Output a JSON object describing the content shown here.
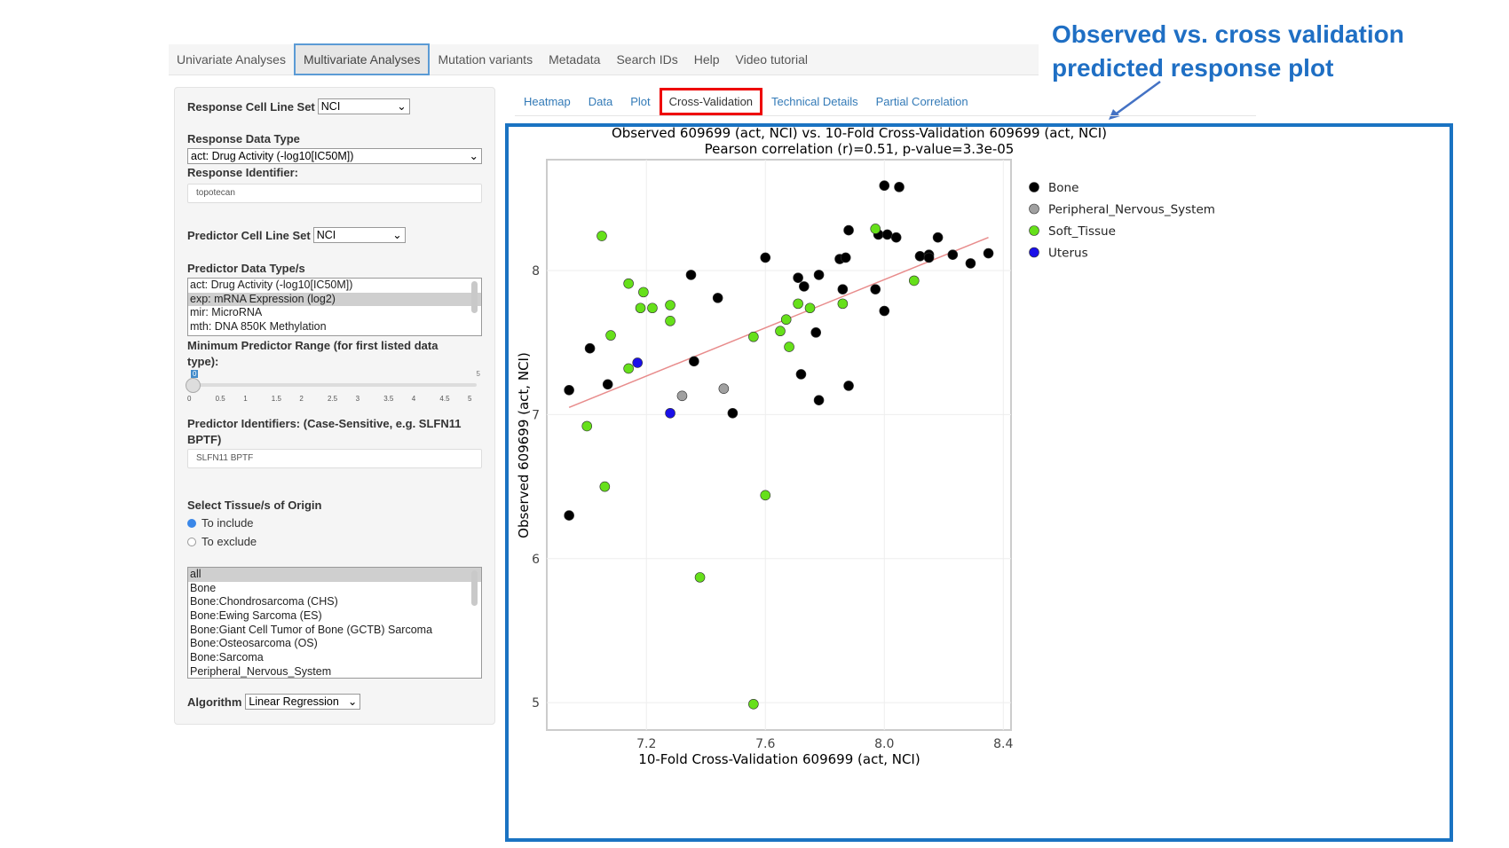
{
  "annotation": {
    "line1": "Observed vs. cross validation",
    "line2": "predicted response plot",
    "color": "#1f6fc4"
  },
  "topnav": [
    "Univariate Analyses",
    "Multivariate Analyses",
    "Mutation variants",
    "Metadata",
    "Search IDs",
    "Help",
    "Video tutorial"
  ],
  "topnav_active": "Multivariate Analyses",
  "left": {
    "response_cell_line_set": {
      "label": "Response Cell Line Set",
      "value": "NCI"
    },
    "response_data_type": {
      "label": "Response Data Type",
      "value": "act: Drug Activity (-log10[IC50M])"
    },
    "response_identifier": {
      "label": "Response Identifier:",
      "value": "topotecan"
    },
    "predictor_cell_line_set": {
      "label": "Predictor Cell Line Set",
      "value": "NCI"
    },
    "predictor_data_types": {
      "label": "Predictor Data Type/s",
      "options": [
        "act: Drug Activity (-log10[IC50M])",
        "exp: mRNA Expression (log2)",
        "mir: MicroRNA",
        "mth: DNA 850K Methylation"
      ],
      "selected": "exp: mRNA Expression (log2)"
    },
    "min_range": {
      "label": "Minimum Predictor Range (for first listed data type):",
      "value": 0,
      "min": 0,
      "max": 5,
      "ticks": [
        "0",
        "0.5",
        "1",
        "1.5",
        "2",
        "2.5",
        "3",
        "3.5",
        "4",
        "4.5",
        "5"
      ],
      "value_label": "0",
      "max_label": "5"
    },
    "predictor_identifiers": {
      "label": "Predictor Identifiers: (Case-Sensitive, e.g. SLFN11 BPTF)",
      "value": "SLFN11 BPTF"
    },
    "tissue": {
      "label": "Select Tissue/s of Origin",
      "include": "To include",
      "exclude": "To exclude",
      "selected_mode": "include",
      "options": [
        "all",
        "Bone",
        "Bone:Chondrosarcoma (CHS)",
        "Bone:Ewing Sarcoma (ES)",
        "Bone:Giant Cell Tumor of Bone (GCTB) Sarcoma",
        "Bone:Osteosarcoma (OS)",
        "Bone:Sarcoma",
        "Peripheral_Nervous_System"
      ],
      "selected": "all"
    },
    "algorithm": {
      "label": "Algorithm",
      "value": "Linear Regression"
    }
  },
  "subtabs": [
    "Heatmap",
    "Data",
    "Plot",
    "Cross-Validation",
    "Technical Details",
    "Partial Correlation"
  ],
  "subtab_active": "Cross-Validation",
  "chart_data": {
    "type": "scatter",
    "title": "Observed 609699 (act, NCI) vs. 10-Fold Cross-Validation 609699 (act, NCI)",
    "subtitle": "Pearson correlation (r)=0.51, p-value=3.3e-05",
    "xlabel": "10-Fold Cross-Validation 609699 (act, NCI)",
    "ylabel": "Observed 609699 (act, NCI)",
    "xlim": [
      6.865,
      8.426
    ],
    "ylim": [
      4.81,
      8.77
    ],
    "xticks": [
      7.2,
      7.6,
      8.0,
      8.4
    ],
    "xtick_labels": [
      "7.2",
      "7.6",
      "8.0",
      "8.4"
    ],
    "yticks": [
      5,
      6,
      7,
      8
    ],
    "ytick_labels": [
      "5",
      "6",
      "7",
      "8"
    ],
    "grid": true,
    "legend_position": "right",
    "fit_line": {
      "x": [
        6.94,
        8.35
      ],
      "y": [
        7.05,
        8.23
      ],
      "color": "#e88c8c"
    },
    "series": [
      {
        "name": "Bone",
        "color": "#000000",
        "points": [
          [
            8.0,
            8.59
          ],
          [
            8.05,
            8.58
          ],
          [
            7.88,
            8.28
          ],
          [
            7.98,
            8.25
          ],
          [
            8.01,
            8.25
          ],
          [
            8.04,
            8.23
          ],
          [
            8.18,
            8.23
          ],
          [
            7.6,
            8.09
          ],
          [
            7.85,
            8.08
          ],
          [
            7.87,
            8.09
          ],
          [
            8.12,
            8.1
          ],
          [
            8.15,
            8.11
          ],
          [
            8.15,
            8.09
          ],
          [
            8.23,
            8.11
          ],
          [
            8.29,
            8.05
          ],
          [
            8.35,
            8.12
          ],
          [
            7.35,
            7.97
          ],
          [
            7.71,
            7.95
          ],
          [
            7.73,
            7.89
          ],
          [
            7.78,
            7.97
          ],
          [
            7.86,
            7.87
          ],
          [
            7.97,
            7.87
          ],
          [
            8.0,
            7.72
          ],
          [
            7.44,
            7.81
          ],
          [
            7.77,
            7.57
          ],
          [
            7.01,
            7.46
          ],
          [
            7.36,
            7.37
          ],
          [
            7.72,
            7.28
          ],
          [
            7.88,
            7.2
          ],
          [
            6.94,
            7.17
          ],
          [
            7.07,
            7.21
          ],
          [
            7.49,
            7.01
          ],
          [
            7.78,
            7.1
          ],
          [
            6.94,
            6.3
          ]
        ]
      },
      {
        "name": "Peripheral_Nervous_System",
        "color": "#a0a0a0",
        "points": [
          [
            7.32,
            7.13
          ],
          [
            7.46,
            7.18
          ]
        ]
      },
      {
        "name": "Soft_Tissue",
        "color": "#66e01a",
        "points": [
          [
            7.05,
            8.24
          ],
          [
            7.14,
            7.91
          ],
          [
            7.19,
            7.85
          ],
          [
            7.18,
            7.74
          ],
          [
            7.22,
            7.74
          ],
          [
            7.28,
            7.76
          ],
          [
            7.28,
            7.65
          ],
          [
            7.08,
            7.55
          ],
          [
            7.14,
            7.32
          ],
          [
            7.56,
            7.54
          ],
          [
            7.65,
            7.58
          ],
          [
            7.67,
            7.66
          ],
          [
            7.68,
            7.47
          ],
          [
            7.71,
            7.77
          ],
          [
            7.75,
            7.74
          ],
          [
            7.86,
            7.77
          ],
          [
            7.97,
            8.29
          ],
          [
            8.1,
            7.93
          ],
          [
            7.0,
            6.92
          ],
          [
            7.06,
            6.5
          ],
          [
            7.6,
            6.44
          ],
          [
            7.38,
            5.87
          ],
          [
            7.56,
            4.99
          ]
        ]
      },
      {
        "name": "Uterus",
        "color": "#1a10e8",
        "points": [
          [
            7.17,
            7.36
          ],
          [
            7.28,
            7.01
          ]
        ]
      }
    ]
  }
}
